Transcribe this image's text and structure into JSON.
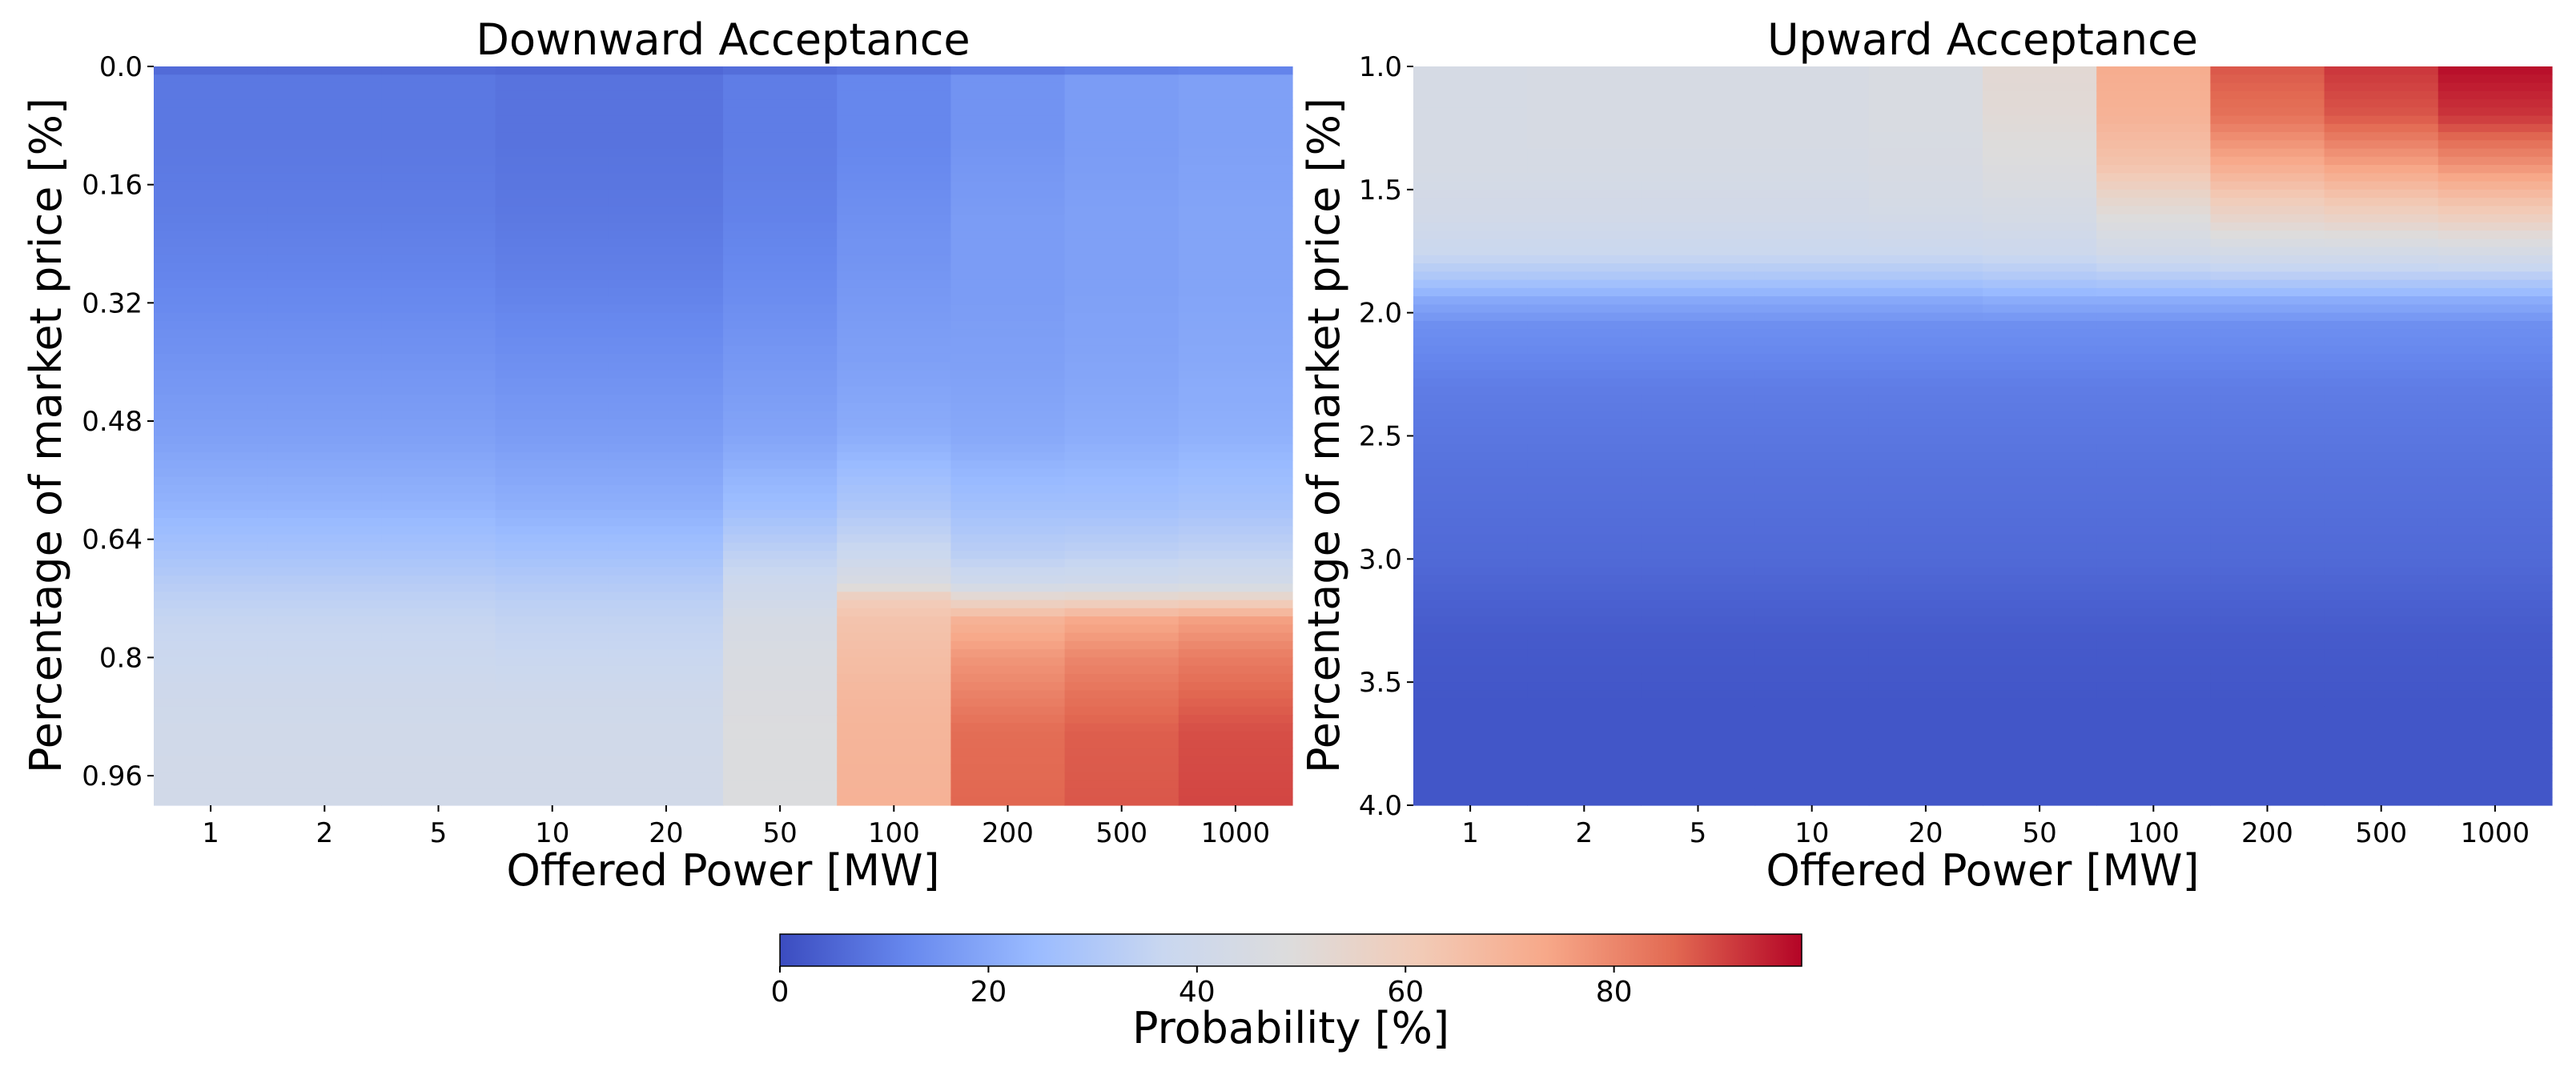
{
  "chart_data": [
    {
      "type": "heatmap",
      "title": "Downward Acceptance",
      "xlabel": "Offered Power [MW]",
      "ylabel": "Percentage of market price [%]",
      "x_categories": [
        "1",
        "2",
        "5",
        "10",
        "20",
        "50",
        "100",
        "200",
        "500",
        "1000"
      ],
      "y_ticks": [
        "0.0",
        "0.16",
        "0.32",
        "0.48",
        "0.64",
        "0.8",
        "0.96"
      ],
      "y_tick_values": [
        0.0,
        0.16,
        0.32,
        0.48,
        0.64,
        0.8,
        0.96
      ],
      "y_range": [
        0.0,
        1.0
      ],
      "profile_y": [
        0.0,
        0.01,
        0.1,
        0.2,
        0.3,
        0.4,
        0.5,
        0.6,
        0.66,
        0.7,
        0.72,
        0.75,
        0.8,
        0.85,
        0.9,
        1.0
      ],
      "probability_matrix": [
        [
          3,
          9,
          9,
          10,
          12,
          15,
          18,
          23,
          28,
          32,
          34,
          36,
          38,
          40,
          41,
          42
        ],
        [
          3,
          9,
          9,
          10,
          12,
          15,
          18,
          23,
          28,
          32,
          34,
          36,
          38,
          40,
          41,
          42
        ],
        [
          3,
          9,
          9,
          10,
          12,
          15,
          18,
          23,
          28,
          32,
          34,
          36,
          38,
          40,
          41,
          42
        ],
        [
          3,
          8,
          8,
          9,
          11,
          14,
          17,
          22,
          27,
          31,
          33,
          35,
          37,
          40,
          41,
          42
        ],
        [
          3,
          8,
          8,
          9,
          11,
          14,
          17,
          22,
          27,
          31,
          33,
          35,
          37,
          40,
          41,
          42
        ],
        [
          3,
          10,
          10,
          11,
          13,
          16,
          19,
          26,
          34,
          39,
          41,
          44,
          46,
          47,
          48,
          48
        ],
        [
          3,
          12,
          12,
          14,
          16,
          18,
          21,
          30,
          38,
          46,
          60,
          64,
          66,
          68,
          69,
          70
        ],
        [
          3,
          15,
          15,
          17,
          17,
          18,
          20,
          27,
          33,
          40,
          54,
          70,
          77,
          81,
          85,
          86
        ],
        [
          3,
          17,
          17,
          18,
          18,
          19,
          21,
          27,
          34,
          41,
          55,
          73,
          80,
          84,
          87,
          88
        ],
        [
          3,
          18,
          18,
          19,
          19,
          20,
          22,
          28,
          35,
          42,
          56,
          75,
          82,
          86,
          89,
          90
        ]
      ]
    },
    {
      "type": "heatmap",
      "title": "Upward Acceptance",
      "xlabel": "Offered Power [MW]",
      "ylabel": "Percentage of market price [%]",
      "x_categories": [
        "1",
        "2",
        "5",
        "10",
        "20",
        "50",
        "100",
        "200",
        "500",
        "1000"
      ],
      "y_ticks": [
        "1.0",
        "1.5",
        "2.0",
        "2.5",
        "3.0",
        "3.5",
        "4.0"
      ],
      "y_tick_values": [
        1.0,
        1.5,
        2.0,
        2.5,
        3.0,
        3.5,
        4.0
      ],
      "y_range": [
        1.0,
        4.0
      ],
      "profile_y": [
        1.0,
        1.2,
        1.4,
        1.6,
        1.75,
        1.85,
        1.95,
        2.05,
        2.3,
        2.6,
        3.0,
        3.3,
        3.6,
        4.0
      ],
      "probability_matrix": [
        [
          44,
          44,
          44,
          42,
          38,
          30,
          20,
          14,
          10,
          8,
          6,
          3,
          2,
          2
        ],
        [
          45,
          45,
          44,
          42,
          38,
          30,
          20,
          14,
          10,
          8,
          6,
          3,
          2,
          2
        ],
        [
          45,
          45,
          44,
          42,
          38,
          30,
          20,
          14,
          10,
          8,
          6,
          3,
          2,
          2
        ],
        [
          45,
          45,
          44,
          42,
          38,
          30,
          20,
          14,
          10,
          8,
          6,
          3,
          2,
          2
        ],
        [
          46,
          46,
          45,
          43,
          38,
          30,
          20,
          14,
          10,
          8,
          6,
          3,
          2,
          2
        ],
        [
          52,
          51,
          48,
          44,
          39,
          31,
          21,
          14,
          10,
          8,
          6,
          3,
          2,
          2
        ],
        [
          72,
          70,
          64,
          50,
          42,
          32,
          21,
          14,
          10,
          8,
          6,
          3,
          2,
          2
        ],
        [
          88,
          84,
          72,
          56,
          43,
          33,
          21,
          14,
          10,
          8,
          6,
          3,
          2,
          2
        ],
        [
          92,
          88,
          75,
          58,
          43,
          33,
          21,
          14,
          10,
          8,
          6,
          3,
          2,
          2
        ],
        [
          97,
          92,
          78,
          60,
          44,
          33,
          21,
          14,
          10,
          8,
          6,
          3,
          2,
          2
        ]
      ]
    }
  ],
  "colorbar": {
    "label": "Probability [%]",
    "ticks": [
      "0",
      "20",
      "40",
      "60",
      "80"
    ],
    "tick_values": [
      0,
      20,
      40,
      60,
      80
    ],
    "range": [
      0,
      98
    ],
    "colormap": "coolwarm",
    "color_stops": [
      "#3b4cc0",
      "#6788ee",
      "#9abbff",
      "#c9d7f0",
      "#dddcdc",
      "#f2cbb7",
      "#f7a889",
      "#e26952",
      "#b40426"
    ]
  }
}
